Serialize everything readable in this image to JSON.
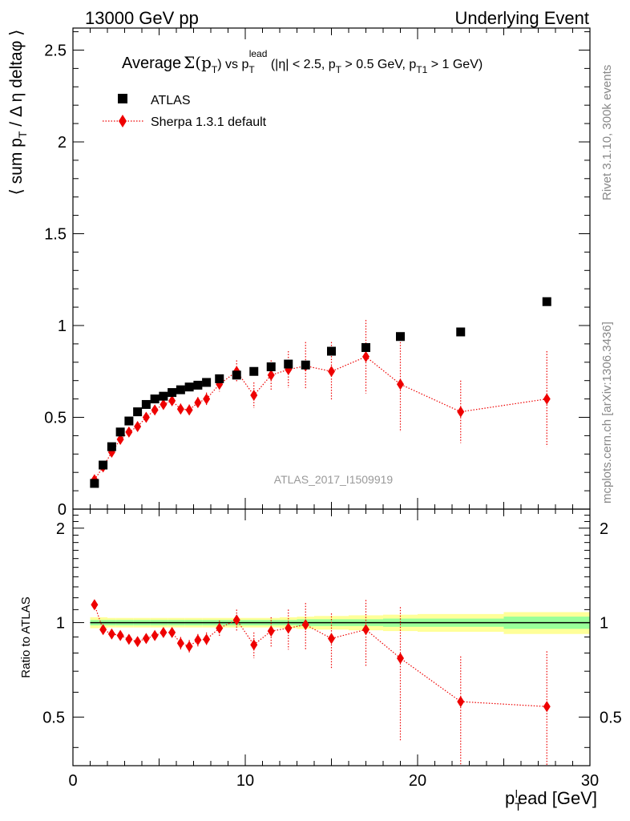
{
  "header": {
    "left": "13000 GeV pp",
    "right": "Underlying Event"
  },
  "side_labels": {
    "rivet": "Rivet 3.1.10,  300k events",
    "mcplots": "mcplots.cern.ch [arXiv:1306.3436]"
  },
  "colors": {
    "data": "#000000",
    "mc": "#ee0000",
    "band_inner": "#99ff99",
    "band_outer": "#ffff99"
  },
  "chart_data": [
    {
      "type": "scatter",
      "title_parts": {
        "pre": "Average",
        "sigma": "Σ(p",
        "sigma_sub": "T",
        "sigma_close": ")",
        "vs": " vs p",
        "vs_sub": "T",
        "vs_sup": "lead",
        "cuts_1": " (|η| < 2.5, p",
        "cuts_1_sub": "T",
        "cuts_2": " > 0.5 GeV, p",
        "cuts_2_sub": "T1",
        "cuts_3": " > 1 GeV)"
      },
      "ylabel": "⟨ sum p_T / Δ η deltaφ ⟩",
      "xlim": [
        0,
        30
      ],
      "ylim": [
        0,
        2.62
      ],
      "yticks": [
        0,
        0.5,
        1,
        1.5,
        2,
        2.5
      ],
      "ytick_labels": [
        "0",
        "0.5",
        "1",
        "1.5",
        "2",
        "2.5"
      ],
      "watermark": "ATLAS_2017_I1509919",
      "legend": {
        "placement": "top-left",
        "entries": [
          "ATLAS",
          "Sherpa 1.3.1 default"
        ]
      },
      "series": [
        {
          "name": "ATLAS",
          "marker": "square",
          "x": [
            1.25,
            1.75,
            2.25,
            2.75,
            3.25,
            3.75,
            4.25,
            4.75,
            5.25,
            5.75,
            6.25,
            6.75,
            7.25,
            7.75,
            8.5,
            9.5,
            10.5,
            11.5,
            12.5,
            13.5,
            15,
            17,
            19,
            22.5,
            27.5
          ],
          "y": [
            0.14,
            0.24,
            0.34,
            0.42,
            0.48,
            0.53,
            0.57,
            0.6,
            0.615,
            0.635,
            0.65,
            0.665,
            0.675,
            0.69,
            0.71,
            0.73,
            0.75,
            0.775,
            0.79,
            0.785,
            0.86,
            0.88,
            0.94,
            0.965,
            1.13
          ]
        },
        {
          "name": "Sherpa 1.3.1 default",
          "marker": "diamond",
          "line": "dotted",
          "x": [
            1.25,
            1.75,
            2.25,
            2.75,
            3.25,
            3.75,
            4.25,
            4.75,
            5.25,
            5.75,
            6.25,
            6.75,
            7.25,
            7.75,
            8.5,
            9.5,
            10.5,
            11.5,
            12.5,
            13.5,
            15,
            17,
            19,
            22.5,
            27.5
          ],
          "y": [
            0.16,
            0.23,
            0.31,
            0.38,
            0.42,
            0.45,
            0.5,
            0.54,
            0.57,
            0.59,
            0.545,
            0.54,
            0.58,
            0.6,
            0.68,
            0.75,
            0.62,
            0.73,
            0.76,
            0.78,
            0.75,
            0.83,
            0.68,
            0.53,
            0.6
          ],
          "yerr": [
            0.015,
            0.015,
            0.015,
            0.015,
            0.015,
            0.015,
            0.02,
            0.02,
            0.02,
            0.02,
            0.03,
            0.03,
            0.03,
            0.035,
            0.04,
            0.06,
            0.07,
            0.08,
            0.1,
            0.13,
            0.16,
            0.2,
            0.26,
            0.17,
            0.26
          ]
        }
      ]
    },
    {
      "type": "scatter",
      "ylabel": "Ratio to ATLAS",
      "xlabel": "p_T^lead [GeV]",
      "xlim": [
        0,
        30
      ],
      "ylim": [
        0.35,
        2.3
      ],
      "log_y": true,
      "xticks": [
        0,
        10,
        20,
        30
      ],
      "xtick_labels": [
        "0",
        "10",
        "20",
        "30"
      ],
      "yticks": [
        0.5,
        1,
        2
      ],
      "ytick_labels": [
        "0.5",
        "1",
        "2"
      ],
      "reference_band": {
        "x_edges": [
          1,
          1.5,
          2,
          2.5,
          3,
          3.5,
          4,
          4.5,
          5,
          5.5,
          6,
          6.5,
          7,
          7.5,
          8,
          9,
          10,
          11,
          12,
          13,
          14,
          16,
          18,
          20,
          25,
          30
        ],
        "inner": [
          0.02,
          0.02,
          0.02,
          0.02,
          0.02,
          0.02,
          0.02,
          0.02,
          0.02,
          0.02,
          0.02,
          0.02,
          0.02,
          0.02,
          0.02,
          0.02,
          0.02,
          0.02,
          0.02,
          0.025,
          0.025,
          0.025,
          0.03,
          0.03,
          0.045
        ],
        "outer": [
          0.04,
          0.04,
          0.035,
          0.035,
          0.035,
          0.035,
          0.035,
          0.035,
          0.035,
          0.035,
          0.035,
          0.035,
          0.035,
          0.035,
          0.035,
          0.035,
          0.035,
          0.035,
          0.04,
          0.045,
          0.05,
          0.055,
          0.06,
          0.065,
          0.08
        ]
      },
      "series": [
        {
          "name": "Sherpa 1.3.1 default",
          "marker": "diamond",
          "line": "dotted",
          "x": [
            1.25,
            1.75,
            2.25,
            2.75,
            3.25,
            3.75,
            4.25,
            4.75,
            5.25,
            5.75,
            6.25,
            6.75,
            7.25,
            7.75,
            8.5,
            9.5,
            10.5,
            11.5,
            12.5,
            13.5,
            15,
            17,
            19,
            22.5,
            27.5
          ],
          "y": [
            1.14,
            0.95,
            0.92,
            0.91,
            0.885,
            0.87,
            0.89,
            0.91,
            0.93,
            0.93,
            0.86,
            0.84,
            0.88,
            0.885,
            0.96,
            1.02,
            0.85,
            0.94,
            0.96,
            0.985,
            0.89,
            0.95,
            0.77,
            0.56,
            0.54
          ],
          "yerr": [
            0.02,
            0.02,
            0.02,
            0.02,
            0.02,
            0.02,
            0.025,
            0.025,
            0.03,
            0.03,
            0.04,
            0.04,
            0.04,
            0.045,
            0.055,
            0.08,
            0.08,
            0.1,
            0.14,
            0.17,
            0.18,
            0.23,
            0.35,
            0.22,
            0.27
          ]
        }
      ]
    }
  ]
}
